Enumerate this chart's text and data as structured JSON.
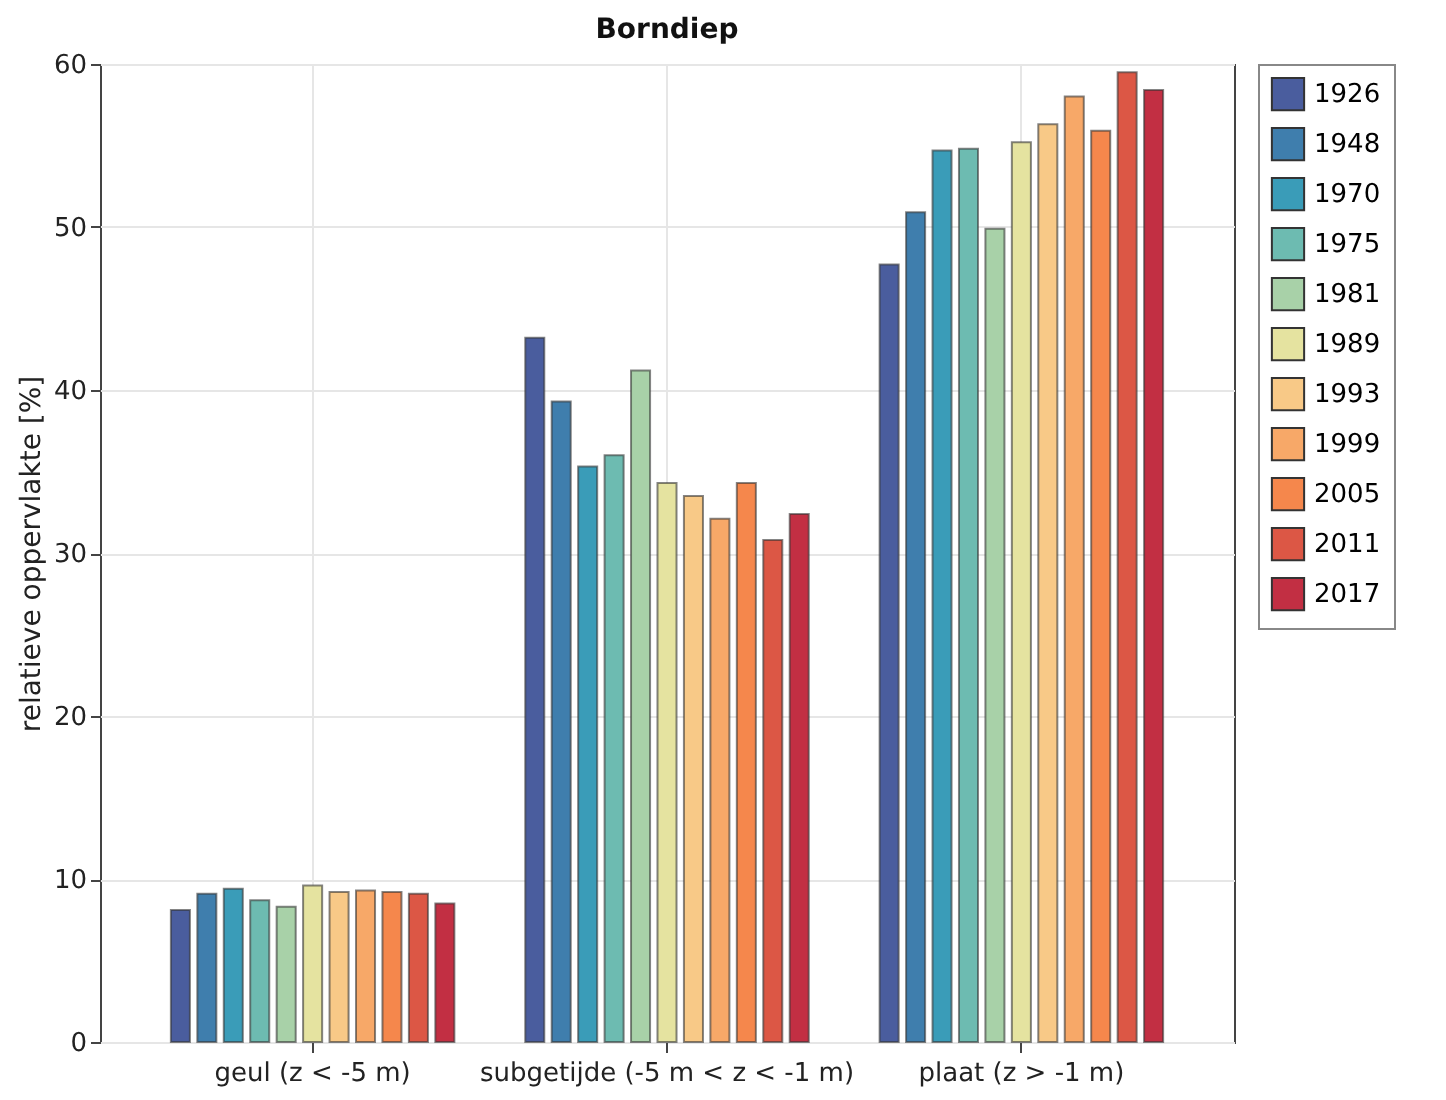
{
  "chart_data": {
    "type": "bar",
    "title": "Borndiep",
    "ylabel": "relatieve oppervlakte [%]",
    "categories": [
      "geul (z < -5 m)",
      "subgetijde (-5 m < z < -1 m)",
      "plaat (z > -1 m)"
    ],
    "series": [
      {
        "name": "1926",
        "color": "#4a5d9e",
        "values": [
          8.1,
          43.2,
          47.7
        ]
      },
      {
        "name": "1948",
        "color": "#3f7ead",
        "values": [
          9.1,
          39.3,
          50.9
        ]
      },
      {
        "name": "1970",
        "color": "#3a9cb8",
        "values": [
          9.4,
          35.3,
          54.7
        ]
      },
      {
        "name": "1975",
        "color": "#6dbbb1",
        "values": [
          8.7,
          36.0,
          54.8
        ]
      },
      {
        "name": "1981",
        "color": "#a8d1a8",
        "values": [
          8.3,
          41.2,
          49.9
        ]
      },
      {
        "name": "1989",
        "color": "#e5e3a0",
        "values": [
          9.6,
          34.3,
          55.2
        ]
      },
      {
        "name": "1993",
        "color": "#f8c987",
        "values": [
          9.2,
          33.5,
          56.3
        ]
      },
      {
        "name": "1999",
        "color": "#f7a868",
        "values": [
          9.3,
          32.1,
          58.0
        ]
      },
      {
        "name": "2005",
        "color": "#f5874c",
        "values": [
          9.2,
          34.3,
          55.9
        ]
      },
      {
        "name": "2011",
        "color": "#dc5745",
        "values": [
          9.1,
          30.8,
          59.5
        ]
      },
      {
        "name": "2017",
        "color": "#c22f43",
        "values": [
          8.5,
          32.4,
          58.4
        ]
      }
    ],
    "ylim": [
      0,
      60
    ],
    "yticks": [
      0,
      10,
      20,
      30,
      40,
      50,
      60
    ],
    "grid": true,
    "legend": "top right"
  }
}
